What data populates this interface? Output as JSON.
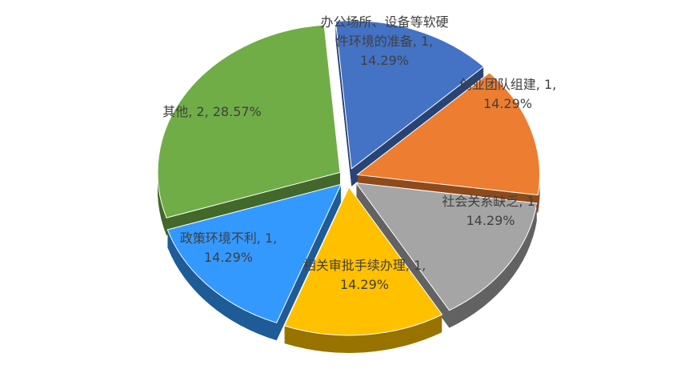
{
  "chart_data": {
    "type": "pie",
    "labels": [
      "办公场所、设备等软硬件环境的准备, 1, 14.29%",
      "创业团队组建, 1, 14.29%",
      "社会关系缺乏, 1, 14.29%",
      "相关审批手续办理, 1, 14.29%",
      "政策环境不利, 1, 14.29%",
      "其他, 2, 28.57%"
    ],
    "values": [
      1,
      1,
      1,
      1,
      1,
      2
    ],
    "colors": [
      "#4472c4",
      "#ed7d31",
      "#a5a5a5",
      "#ffc000",
      "#3399ff",
      "#70ad47"
    ]
  }
}
